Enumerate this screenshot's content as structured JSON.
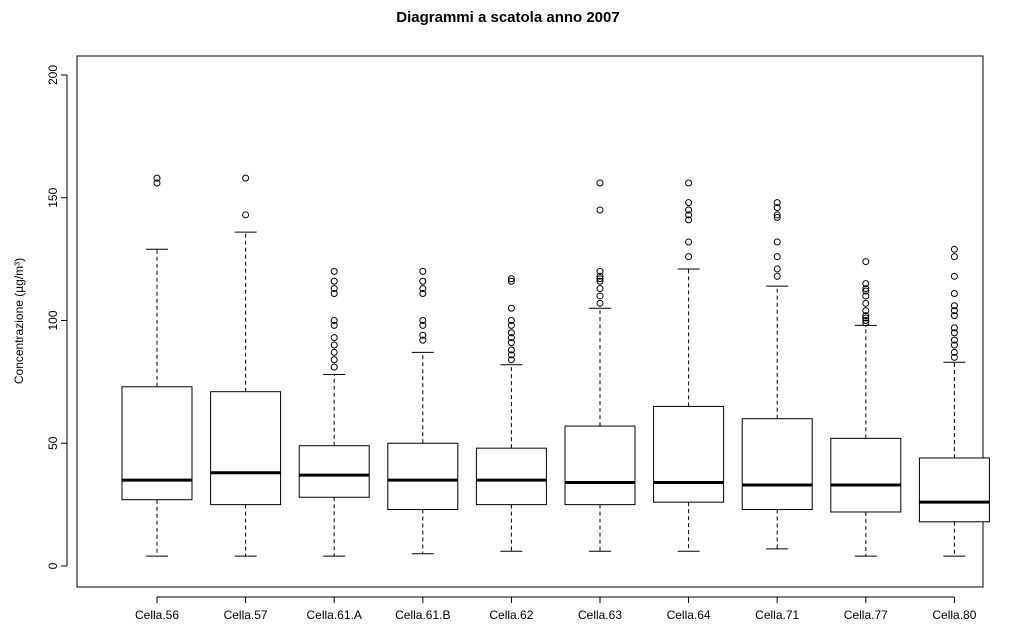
{
  "chart_data": {
    "type": "box",
    "title": "Diagrammi a scatola anno 2007",
    "xlabel": "",
    "ylabel": "Concentrazione (µg/m³)",
    "ylim": [
      0,
      200
    ],
    "yticks": [
      "0",
      "50",
      "100",
      "150",
      "200"
    ],
    "grid": false,
    "categories": [
      "Cella.56",
      "Cella.57",
      "Cella.61.A",
      "Cella.61.B",
      "Cella.62",
      "Cella.63",
      "Cella.64",
      "Cella.71",
      "Cella.77",
      "Cella.80"
    ],
    "boxes": [
      {
        "whisker_low": 4,
        "q1": 27,
        "median": 35,
        "q3": 73,
        "whisker_high": 129,
        "outliers": [
          156,
          158
        ]
      },
      {
        "whisker_low": 4,
        "q1": 25,
        "median": 38,
        "q3": 71,
        "whisker_high": 136,
        "outliers": [
          143,
          158
        ]
      },
      {
        "whisker_low": 4,
        "q1": 28,
        "median": 37,
        "q3": 49,
        "whisker_high": 78,
        "outliers": [
          81,
          84,
          87,
          90,
          93,
          98,
          100,
          111,
          113,
          116,
          120
        ]
      },
      {
        "whisker_low": 5,
        "q1": 23,
        "median": 35,
        "q3": 50,
        "whisker_high": 87,
        "outliers": [
          92,
          94,
          98,
          100,
          111,
          113,
          116,
          120
        ]
      },
      {
        "whisker_low": 6,
        "q1": 25,
        "median": 35,
        "q3": 48,
        "whisker_high": 82,
        "outliers": [
          84,
          86,
          88,
          91,
          93,
          95,
          98,
          100,
          105,
          116,
          117
        ]
      },
      {
        "whisker_low": 6,
        "q1": 25,
        "median": 34,
        "q3": 57,
        "whisker_high": 105,
        "outliers": [
          107,
          110,
          113,
          116,
          117,
          118,
          120,
          145,
          156
        ]
      },
      {
        "whisker_low": 6,
        "q1": 26,
        "median": 34,
        "q3": 65,
        "whisker_high": 121,
        "outliers": [
          126,
          132,
          141,
          143,
          145,
          148,
          156
        ]
      },
      {
        "whisker_low": 7,
        "q1": 23,
        "median": 33,
        "q3": 60,
        "whisker_high": 114,
        "outliers": [
          118,
          121,
          126,
          132,
          142,
          143,
          146,
          148
        ]
      },
      {
        "whisker_low": 4,
        "q1": 22,
        "median": 33,
        "q3": 52,
        "whisker_high": 98,
        "outliers": [
          99,
          100,
          101,
          102,
          104,
          107,
          110,
          112,
          113,
          115,
          124
        ]
      },
      {
        "whisker_low": 4,
        "q1": 18,
        "median": 26,
        "q3": 44,
        "whisker_high": 83,
        "outliers": [
          85,
          87,
          90,
          92,
          95,
          97,
          102,
          104,
          106,
          111,
          118,
          126,
          129
        ]
      }
    ]
  }
}
